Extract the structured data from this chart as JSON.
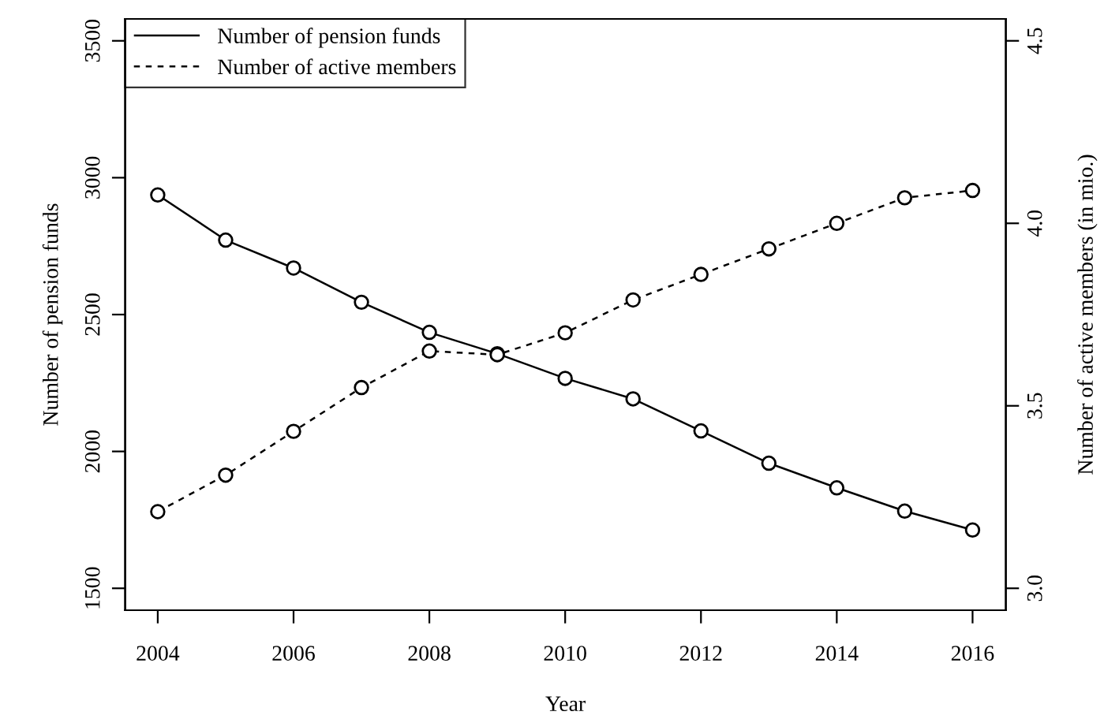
{
  "chart_data": {
    "type": "line",
    "xlabel": "Year",
    "ylabel": "Number of pension funds",
    "y2label": "Number of active members (in mio.)",
    "x": [
      2004,
      2005,
      2006,
      2007,
      2008,
      2009,
      2010,
      2011,
      2012,
      2013,
      2014,
      2015,
      2016
    ],
    "series": [
      {
        "name": "Number of pension funds",
        "color": "#000000",
        "line_style": "solid",
        "values": [
          2937,
          2772,
          2670,
          2545,
          2435,
          2357,
          2267,
          2192,
          2075,
          1957,
          1867,
          1782,
          1713
        ]
      },
      {
        "name": "Number of active members",
        "color": "#000000",
        "line_style": "dashed",
        "axis": "y2",
        "values": [
          3.21,
          3.31,
          3.43,
          3.55,
          3.65,
          3.64,
          3.7,
          3.79,
          3.86,
          3.93,
          4.0,
          4.07,
          4.09
        ]
      }
    ],
    "xlim": [
      2003.52,
      2016.49
    ],
    "xticks": [
      2004,
      2006,
      2008,
      2010,
      2012,
      2014,
      2016
    ],
    "ylim": [
      1420,
      3580
    ],
    "yticks": [
      1500,
      2000,
      2500,
      3000,
      3500
    ],
    "y2lim": [
      2.94,
      4.56
    ],
    "y2ticks": [
      {
        "value": 3,
        "label": "3.0"
      },
      {
        "value": 3.5,
        "label": "3.5"
      },
      {
        "value": 4,
        "label": "4.0"
      },
      {
        "value": 4.5,
        "label": "4.5"
      }
    ],
    "marker": "circle",
    "grid": false,
    "legend": "top left"
  }
}
